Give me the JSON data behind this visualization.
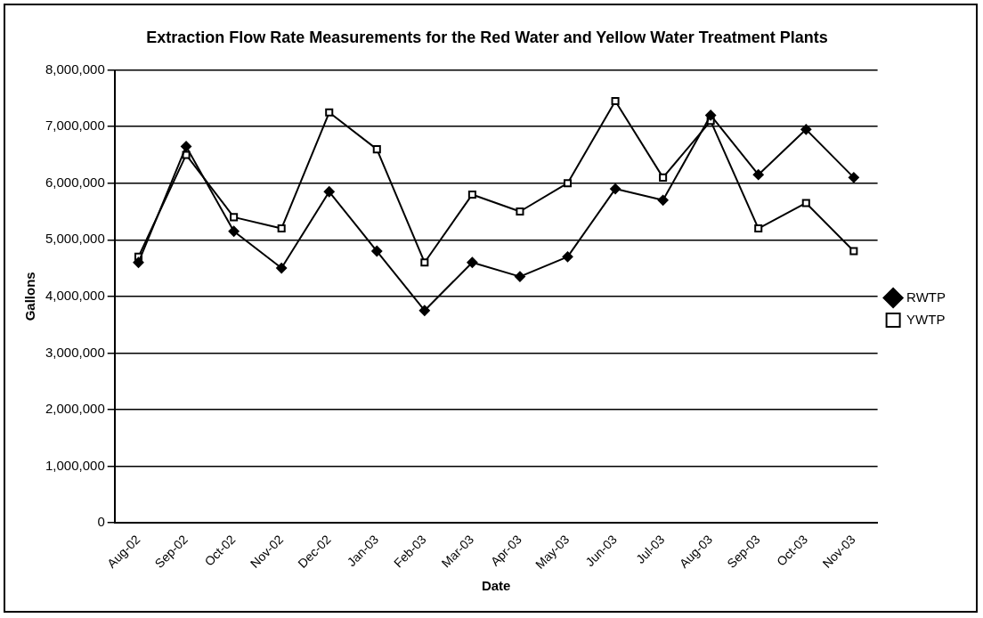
{
  "chart_data": {
    "type": "line",
    "title": "Extraction Flow Rate Measurements for the Red Water and Yellow Water Treatment Plants",
    "xlabel": "Date",
    "ylabel": "Gallons",
    "categories": [
      "Aug-02",
      "Sep-02",
      "Oct-02",
      "Nov-02",
      "Dec-02",
      "Jan-03",
      "Feb-03",
      "Mar-03",
      "Apr-03",
      "May-03",
      "Jun-03",
      "Jul-03",
      "Aug-03",
      "Sep-03",
      "Oct-03",
      "Nov-03"
    ],
    "series": [
      {
        "name": "RWTP",
        "color": "#000000",
        "marker": "diamond",
        "values": [
          4600000,
          6650000,
          5150000,
          4500000,
          5850000,
          4800000,
          3750000,
          4600000,
          4350000,
          4700000,
          5900000,
          5700000,
          7200000,
          6150000,
          6950000,
          6100000
        ]
      },
      {
        "name": "YWTP",
        "color": "#000000",
        "marker": "square",
        "values": [
          4700000,
          6500000,
          5400000,
          5200000,
          7250000,
          6600000,
          4600000,
          5800000,
          5500000,
          6000000,
          7450000,
          6100000,
          7100000,
          5200000,
          5650000,
          4800000
        ]
      }
    ],
    "ylim": [
      0,
      8000000
    ],
    "yticks": [
      {
        "value": 0,
        "label": "0"
      },
      {
        "value": 1000000,
        "label": "1,000,000"
      },
      {
        "value": 2000000,
        "label": "2,000,000"
      },
      {
        "value": 3000000,
        "label": "3,000,000"
      },
      {
        "value": 4000000,
        "label": "4,000,000"
      },
      {
        "value": 5000000,
        "label": "5,000,000"
      },
      {
        "value": 6000000,
        "label": "6,000,000"
      },
      {
        "value": 7000000,
        "label": "7,000,000"
      },
      {
        "value": 8000000,
        "label": "8,000,000"
      }
    ],
    "grid": "y",
    "legend": "right",
    "line_style": "solid"
  }
}
